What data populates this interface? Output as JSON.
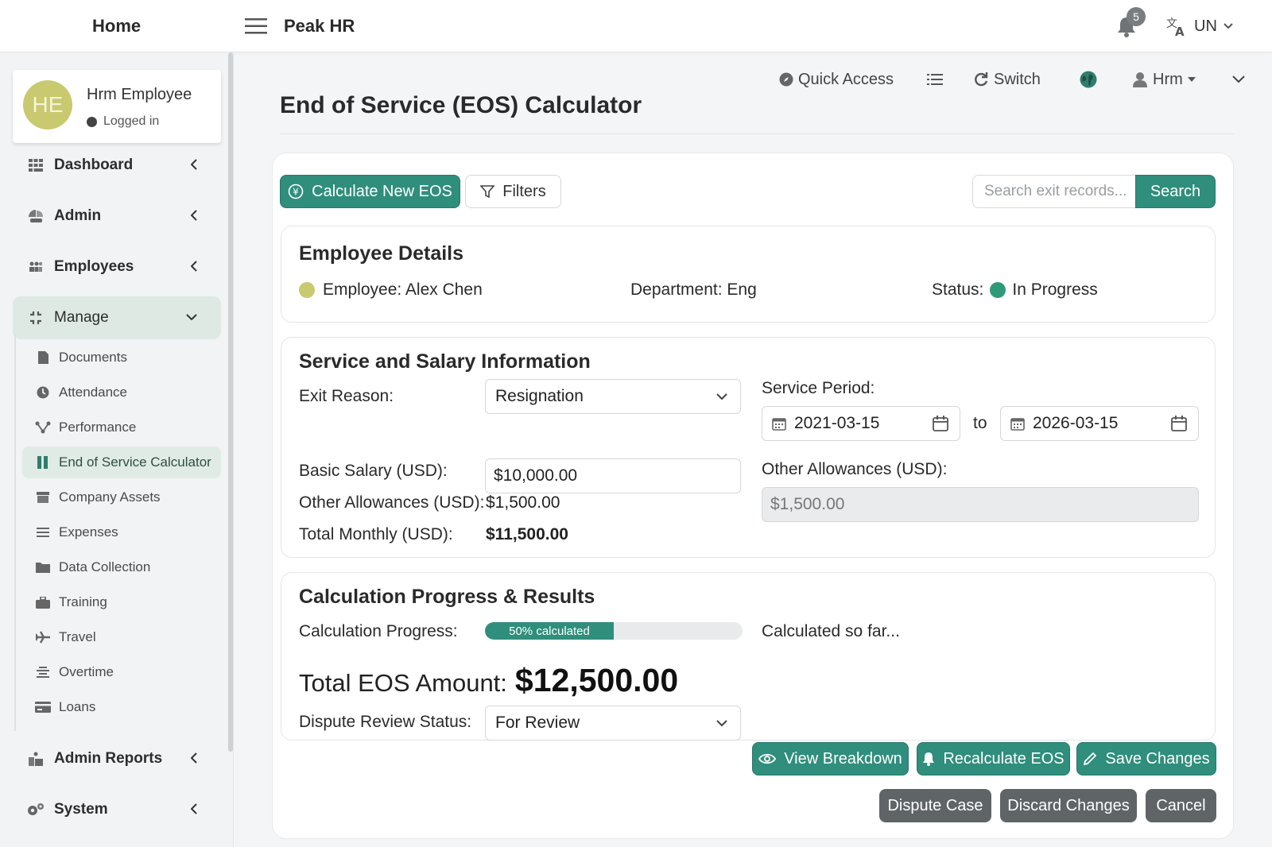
{
  "topbar": {
    "home_label": "Home",
    "app_name": "Peak HR",
    "notification_count": "5",
    "language": "UN"
  },
  "user": {
    "initials": "HE",
    "name": "Hrm Employee",
    "status": "Logged in"
  },
  "nav": {
    "dashboard": "Dashboard",
    "admin": "Admin",
    "employees": "Employees",
    "manage": "Manage",
    "sub": {
      "documents": "Documents",
      "attendance": "Attendance",
      "performance": "Performance",
      "eos": "End of Service Calculator",
      "assets": "Company Assets",
      "expenses": "Expenses",
      "data_collection": "Data Collection",
      "training": "Training",
      "travel": "Travel",
      "overtime": "Overtime",
      "loans": "Loans"
    },
    "admin_reports": "Admin Reports",
    "system": "System"
  },
  "header_actions": {
    "quick_access": "Quick Access",
    "switch": "Switch",
    "user_menu": "Hrm"
  },
  "page": {
    "title": "End of Service (EOS) Calculator"
  },
  "actions": {
    "calculate_new": "Calculate New EOS",
    "filters": "Filters",
    "search_placeholder": "Search exit records...",
    "search_button": "Search"
  },
  "employee": {
    "section_title": "Employee Details",
    "employee_text": "Employee: Alex Chen",
    "department_text": "Department: Eng",
    "status_label": "Status:",
    "status_value": "In Progress"
  },
  "service": {
    "section_title": "Service and Salary Information",
    "exit_reason_label": "Exit Reason:",
    "exit_reason_value": "Resignation",
    "service_period_label": "Service Period:",
    "start_date": "2021-03-15",
    "to_label": "to",
    "end_date": "2026-03-15",
    "basic_salary_label": "Basic Salary (USD):",
    "basic_salary_value": "$10,000.00",
    "other_allowances_label": "Other Allowances (USD):",
    "other_allowances_value": "$1,500.00",
    "total_monthly_label": "Total Monthly (USD):",
    "total_monthly_value": "$11,500.00",
    "other_allowances_right_label": "Other Allowances (USD):",
    "other_allowances_right_value": "$1,500.00"
  },
  "results": {
    "section_title": "Calculation Progress & Results",
    "progress_label": "Calculation Progress:",
    "progress_percent": 50,
    "progress_text": "50% calculated",
    "calculated_note": "Calculated so far...",
    "total_label": "Total EOS Amount:",
    "total_value": "$12,500.00",
    "dispute_label": "Dispute Review Status:",
    "dispute_value": "For Review"
  },
  "footer_buttons": {
    "view_breakdown": "View Breakdown",
    "recalculate": "Recalculate EOS",
    "save": "Save Changes",
    "dispute": "Dispute Case",
    "discard": "Discard Changes",
    "cancel": "Cancel"
  },
  "colors": {
    "accent": "#2f8e7c",
    "employee_dot": "#c9c970",
    "status_dot": "#2f9a78",
    "dark_button": "#5f6467"
  }
}
